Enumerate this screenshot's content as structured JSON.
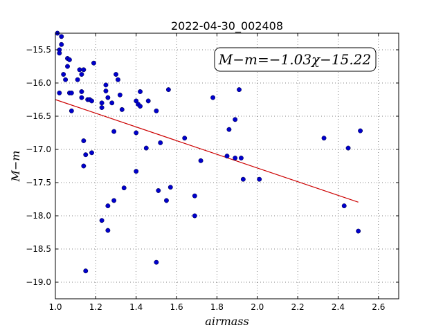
{
  "chart_data": {
    "type": "scatter",
    "title": "2022-04-30_002408",
    "xlabel": "airmass",
    "ylabel": "M−m",
    "xlim": [
      1.0,
      2.7
    ],
    "ylim": [
      -19.25,
      -15.25
    ],
    "y_inverted": true,
    "grid": true,
    "xticks": [
      1.0,
      1.2,
      1.4,
      1.6,
      1.8,
      2.0,
      2.2,
      2.4,
      2.6
    ],
    "xtick_labels": [
      "1.0",
      "1.2",
      "1.4",
      "1.6",
      "1.8",
      "2.0",
      "2.2",
      "2.4",
      "2.6"
    ],
    "yticks": [
      -15.5,
      -16.0,
      -16.5,
      -17.0,
      -17.5,
      -18.0,
      -18.5,
      -19.0
    ],
    "ytick_labels": [
      "−15.5",
      "−16.0",
      "−16.5",
      "−17.0",
      "−17.5",
      "−18.0",
      "−18.5",
      "−19.0"
    ],
    "annotation": "M−m=−1.03χ−15.22",
    "fit_line": {
      "slope": -1.03,
      "intercept": -15.22,
      "x": [
        1.0,
        2.5
      ],
      "color": "#cc0000"
    },
    "point_color": "#0000cc",
    "points": [
      [
        1.01,
        -15.25
      ],
      [
        1.02,
        -15.5
      ],
      [
        1.02,
        -15.55
      ],
      [
        1.03,
        -15.3
      ],
      [
        1.03,
        -15.42
      ],
      [
        1.04,
        -15.87
      ],
      [
        1.05,
        -15.95
      ],
      [
        1.06,
        -15.63
      ],
      [
        1.06,
        -15.75
      ],
      [
        1.07,
        -15.65
      ],
      [
        1.02,
        -16.15
      ],
      [
        1.07,
        -16.15
      ],
      [
        1.08,
        -16.15
      ],
      [
        1.08,
        -16.42
      ],
      [
        1.11,
        -15.95
      ],
      [
        1.12,
        -15.8
      ],
      [
        1.13,
        -15.87
      ],
      [
        1.14,
        -15.8
      ],
      [
        1.13,
        -16.13
      ],
      [
        1.13,
        -16.22
      ],
      [
        1.16,
        -16.25
      ],
      [
        1.17,
        -16.25
      ],
      [
        1.18,
        -16.27
      ],
      [
        1.19,
        -15.7
      ],
      [
        1.14,
        -16.87
      ],
      [
        1.15,
        -17.08
      ],
      [
        1.14,
        -17.25
      ],
      [
        1.18,
        -17.05
      ],
      [
        1.15,
        -18.83
      ],
      [
        1.23,
        -16.3
      ],
      [
        1.23,
        -16.37
      ],
      [
        1.25,
        -16.03
      ],
      [
        1.25,
        -16.12
      ],
      [
        1.26,
        -16.22
      ],
      [
        1.28,
        -16.3
      ],
      [
        1.3,
        -15.87
      ],
      [
        1.31,
        -15.95
      ],
      [
        1.32,
        -16.18
      ],
      [
        1.33,
        -16.4
      ],
      [
        1.29,
        -16.73
      ],
      [
        1.23,
        -18.07
      ],
      [
        1.26,
        -17.85
      ],
      [
        1.26,
        -18.22
      ],
      [
        1.29,
        -17.77
      ],
      [
        1.34,
        -17.58
      ],
      [
        1.4,
        -16.27
      ],
      [
        1.41,
        -16.32
      ],
      [
        1.42,
        -16.35
      ],
      [
        1.42,
        -16.13
      ],
      [
        1.46,
        -16.27
      ],
      [
        1.4,
        -16.75
      ],
      [
        1.45,
        -16.98
      ],
      [
        1.4,
        -17.33
      ],
      [
        1.5,
        -16.42
      ],
      [
        1.52,
        -16.9
      ],
      [
        1.56,
        -16.1
      ],
      [
        1.51,
        -17.62
      ],
      [
        1.55,
        -17.77
      ],
      [
        1.57,
        -17.57
      ],
      [
        1.5,
        -18.7
      ],
      [
        1.64,
        -16.83
      ],
      [
        1.69,
        -17.7
      ],
      [
        1.69,
        -18.0
      ],
      [
        1.72,
        -17.17
      ],
      [
        1.78,
        -16.22
      ],
      [
        1.85,
        -17.1
      ],
      [
        1.86,
        -16.7
      ],
      [
        1.89,
        -16.55
      ],
      [
        1.89,
        -17.13
      ],
      [
        1.91,
        -16.1
      ],
      [
        1.92,
        -17.13
      ],
      [
        1.93,
        -17.45
      ],
      [
        2.01,
        -17.45
      ],
      [
        2.33,
        -16.83
      ],
      [
        2.43,
        -17.85
      ],
      [
        2.45,
        -16.98
      ],
      [
        2.5,
        -18.23
      ],
      [
        2.51,
        -16.72
      ]
    ]
  }
}
